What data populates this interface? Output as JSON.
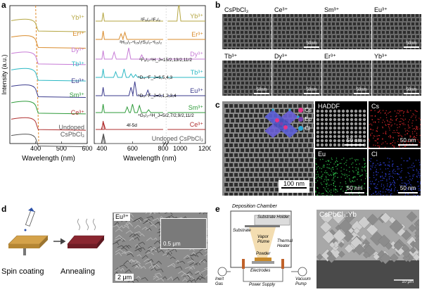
{
  "panel_a": {
    "letter": "a",
    "left_xlabel": "Wavelength (nm)",
    "right_xlabel": "Wavelength (nm)",
    "ylabel": "Intensity (a.u.)",
    "left_ticks": [
      "400",
      "500",
      "600"
    ],
    "right_ticks": [
      "400",
      "600",
      "800",
      "1000",
      "1200"
    ],
    "left_labels": [
      {
        "text": "Yb³⁺",
        "color": "#b5a642"
      },
      {
        "text": "Er³⁺",
        "color": "#d98b2b"
      },
      {
        "text": "Dy³⁺",
        "color": "#c77bd6"
      },
      {
        "text": "Tb³⁺",
        "color": "#2bb8c4"
      },
      {
        "text": "Eu³⁺",
        "color": "#3a3a8c"
      },
      {
        "text": "Sm³⁺",
        "color": "#2e9b3a"
      },
      {
        "text": "Ce³⁺",
        "color": "#b03030"
      },
      {
        "text": "Undoped",
        "color": "#555555"
      },
      {
        "text": "CsPbCl₃",
        "color": "#555555"
      }
    ],
    "right_labels": [
      {
        "text": "Yb³⁺",
        "color": "#b5a642"
      },
      {
        "text": "Er³⁺",
        "color": "#d98b2b"
      },
      {
        "text": "Dy³⁺",
        "color": "#c77bd6"
      },
      {
        "text": "Tb³⁺",
        "color": "#2bb8c4"
      },
      {
        "text": "Eu³⁺",
        "color": "#3a3a8c"
      },
      {
        "text": "Sm³⁺",
        "color": "#2e9b3a"
      },
      {
        "text": "Ce³⁺",
        "color": "#b03030"
      },
      {
        "text": "Undoped CsPbCl₃",
        "color": "#555555"
      }
    ],
    "annotations": [
      "²F₅/₂-²F₇/₂",
      "²H₁₁/₂-⁴I₁₅/₂",
      "⁴S₃/₂-⁴I₁₅/₂",
      "⁴F₉/₂-⁶H_J=15/2,13/2,11/2",
      "⁵D₄-⁷F_J=6,5,4,3",
      "⁵D₀-⁷F_J=0,1,2,3,4",
      "⁴G₅/₂-⁶H_J=5/2,7/2,9/2,11/2",
      "4f-5d"
    ]
  },
  "panel_b": {
    "letter": "b",
    "tiles": [
      {
        "label": "CsPbCl₃",
        "scale": ""
      },
      {
        "label": "Ce³⁺",
        "scale": "50nm"
      },
      {
        "label": "Sm³⁺",
        "scale": ""
      },
      {
        "label": "Eu³⁺",
        "scale": "50nm"
      },
      {
        "label": "Tb³⁺",
        "scale": "50nm"
      },
      {
        "label": "Dy³⁺",
        "scale": "50nm"
      },
      {
        "label": "Er³⁺",
        "scale": "50nm"
      },
      {
        "label": "Yb³⁺",
        "scale": "50nm"
      }
    ]
  },
  "panel_c": {
    "letter": "c",
    "main_scale": "100 nm",
    "legend": [
      {
        "text": "Cs",
        "color": "#e8338a"
      },
      {
        "text": "Eu",
        "color": "#7a3fb0"
      },
      {
        "text": "Cl",
        "color": "#28a8d8"
      }
    ],
    "maps": [
      {
        "label": "HADDF",
        "scale": "50 nm",
        "color": "#c8c8c8"
      },
      {
        "label": "Cs",
        "scale": "50 nm",
        "color": "#d8262a"
      },
      {
        "label": "Eu",
        "scale": "50 nm",
        "color": "#2ec24a"
      },
      {
        "label": "Cl",
        "scale": "50 nm",
        "color": "#2f3fd8"
      }
    ]
  },
  "panel_d": {
    "letter": "d",
    "step1": "Spin coating",
    "step2": "Annealing",
    "sem_label": "Eu³⁺",
    "inset_scale": "0.5 μm",
    "main_scale": "2 μm"
  },
  "panel_e": {
    "letter": "e",
    "chamber_title": "Deposition Chamber",
    "labels": {
      "substrate_holder": "Substrate Holder",
      "substrate": "Substrate",
      "vapor_plume": "Vapor Plume",
      "thermal_heater": "Thermal Heater",
      "powder": "Powder",
      "electrodes": "Electrodes",
      "power_supply": "Power Supply",
      "inert_gas": "Inert Gas",
      "vacuum_pump": "Vacuum Pump"
    },
    "sem_label": "CsPbCl₃:Yb",
    "sem_scale": "10 μm"
  },
  "colors": {
    "orange_dash": "#e08a2a",
    "undoped": "#555555"
  }
}
